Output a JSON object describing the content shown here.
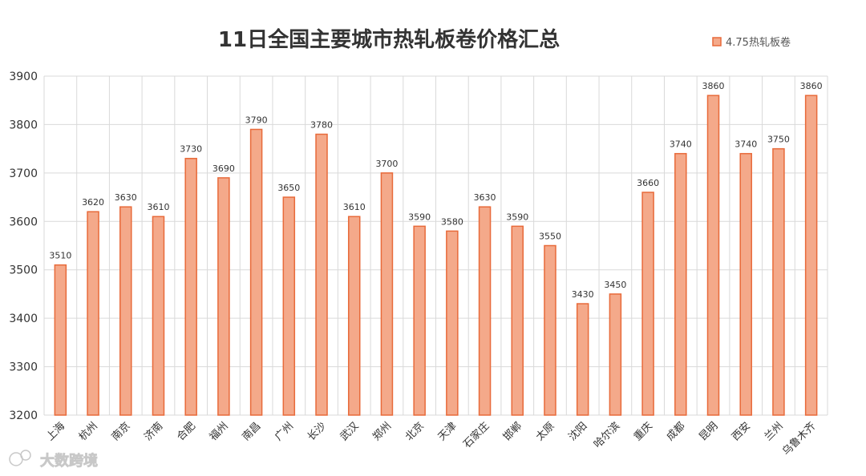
{
  "chart_data": {
    "type": "bar",
    "title": "11日全国主要城市热轧板卷价格汇总",
    "xlabel": "",
    "ylabel": "",
    "ylim": [
      3200,
      3900
    ],
    "yticks": [
      3200,
      3300,
      3400,
      3500,
      3600,
      3700,
      3800,
      3900
    ],
    "grid": true,
    "legend_position": "top-right",
    "categories": [
      "上海",
      "杭州",
      "南京",
      "济南",
      "合肥",
      "福州",
      "南昌",
      "广州",
      "长沙",
      "武汉",
      "郑州",
      "北京",
      "天津",
      "石家庄",
      "邯郸",
      "太原",
      "沈阳",
      "哈尔滨",
      "重庆",
      "成都",
      "昆明",
      "西安",
      "兰州",
      "乌鲁木齐"
    ],
    "series": [
      {
        "name": "4.75热轧板卷",
        "values": [
          3510,
          3620,
          3630,
          3610,
          3730,
          3690,
          3790,
          3650,
          3780,
          3610,
          3700,
          3590,
          3580,
          3630,
          3590,
          3550,
          3430,
          3450,
          3660,
          3740,
          3860,
          3740,
          3750,
          3860
        ]
      }
    ],
    "colors": {
      "bar_fill": "#f4a98a",
      "bar_stroke": "#e86a3a"
    }
  },
  "watermark": {
    "text": "大数跨境"
  }
}
